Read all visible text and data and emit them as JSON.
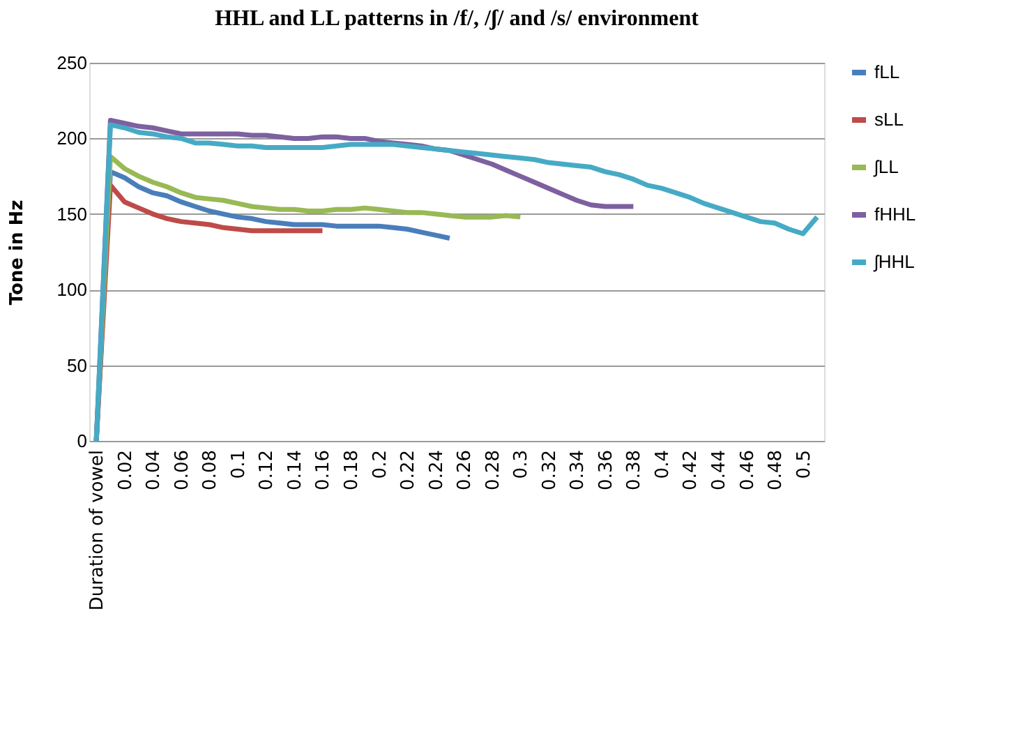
{
  "chart_data": {
    "type": "line",
    "title": "HHL and LL patterns in /f/, /ʃ/ and /s/ environment",
    "ylabel": "Tone in Hz",
    "categories": [
      "Duration of vowel",
      null,
      "0.02",
      null,
      "0.04",
      null,
      "0.06",
      null,
      "0.08",
      null,
      "0.1",
      null,
      "0.12",
      null,
      "0.14",
      null,
      "0.16",
      null,
      "0.18",
      null,
      "0.2",
      null,
      "0.22",
      null,
      "0.24",
      null,
      "0.26",
      null,
      "0.28",
      null,
      "0.3",
      null,
      "0.32",
      null,
      "0.34",
      null,
      "0.36",
      null,
      "0.38",
      null,
      "0.4",
      null,
      "0.42",
      null,
      "0.44",
      null,
      "0.46",
      null,
      "0.48",
      null,
      "0.5",
      null
    ],
    "series": [
      {
        "name": "fLL",
        "color": "#4a7ebb",
        "values": [
          0,
          178,
          174,
          168,
          164,
          162,
          158,
          155,
          152,
          150,
          148,
          147,
          145,
          144,
          143,
          143,
          143,
          142,
          142,
          142,
          142,
          141,
          140,
          138,
          136,
          134,
          null,
          null,
          null,
          null,
          null,
          null,
          null,
          null,
          null,
          null,
          null,
          null,
          null,
          null,
          null,
          null,
          null,
          null,
          null,
          null,
          null,
          null,
          null,
          null,
          null,
          null
        ]
      },
      {
        "name": "sLL",
        "color": "#be4b48",
        "values": [
          0,
          169,
          158,
          154,
          150,
          147,
          145,
          144,
          143,
          141,
          140,
          139,
          139,
          139,
          139,
          139,
          139,
          null,
          null,
          null,
          null,
          null,
          null,
          null,
          null,
          null,
          null,
          null,
          null,
          null,
          null,
          null,
          null,
          null,
          null,
          null,
          null,
          null,
          null,
          null,
          null,
          null,
          null,
          null,
          null,
          null,
          null,
          null,
          null,
          null,
          null,
          null
        ]
      },
      {
        "name": "ʃLL",
        "color": "#98b954",
        "values": [
          0,
          188,
          180,
          175,
          171,
          168,
          164,
          161,
          160,
          159,
          157,
          155,
          154,
          153,
          153,
          152,
          152,
          153,
          153,
          154,
          153,
          152,
          151,
          151,
          150,
          149,
          148,
          148,
          148,
          149,
          148,
          null,
          null,
          null,
          null,
          null,
          null,
          null,
          null,
          null,
          null,
          null,
          null,
          null,
          null,
          null,
          null,
          null,
          null,
          null,
          null,
          null
        ]
      },
      {
        "name": "fHHL",
        "color": "#7d60a0",
        "values": [
          0,
          212,
          210,
          208,
          207,
          205,
          203,
          203,
          203,
          203,
          203,
          202,
          202,
          201,
          200,
          200,
          201,
          201,
          200,
          200,
          198,
          197,
          196,
          195,
          193,
          192,
          189,
          186,
          183,
          179,
          175,
          171,
          167,
          163,
          159,
          156,
          155,
          155,
          155,
          null,
          null,
          null,
          null,
          null,
          null,
          null,
          null,
          null,
          null,
          null,
          null,
          null
        ]
      },
      {
        "name": "ʃHHL",
        "color": "#46aac5",
        "values": [
          0,
          209,
          207,
          204,
          203,
          201,
          200,
          197,
          197,
          196,
          195,
          195,
          194,
          194,
          194,
          194,
          194,
          195,
          196,
          196,
          196,
          196,
          195,
          194,
          193,
          192,
          191,
          190,
          189,
          188,
          187,
          186,
          184,
          183,
          182,
          181,
          178,
          176,
          173,
          169,
          167,
          164,
          161,
          157,
          154,
          151,
          148,
          145,
          144,
          140,
          137,
          148
        ]
      }
    ],
    "ylim": [
      0,
      250
    ],
    "yticks": [
      0,
      50,
      100,
      150,
      200,
      250
    ],
    "grid": "y",
    "legend": "right",
    "marker": "none",
    "line_style": "solid"
  }
}
